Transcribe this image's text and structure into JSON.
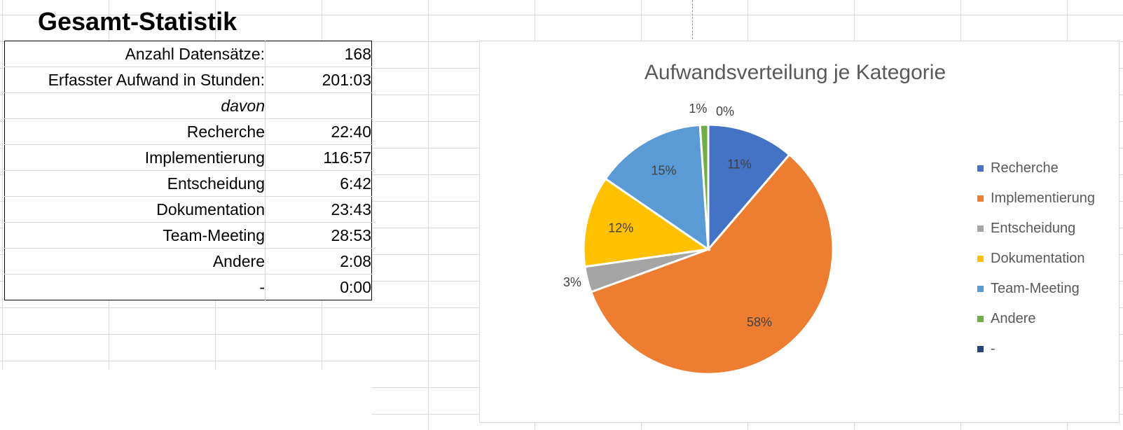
{
  "sheet": {
    "title": "Gesamt-Statistik",
    "rows": [
      {
        "label": "Anzahl Datensätze:",
        "value": "168",
        "italic": false
      },
      {
        "label": "Erfasster Aufwand in Stunden:",
        "value": "201:03",
        "italic": false
      },
      {
        "label": "davon",
        "value": "",
        "italic": true
      },
      {
        "label": "Recherche",
        "value": "22:40",
        "italic": false
      },
      {
        "label": "Implementierung",
        "value": "116:57",
        "italic": false
      },
      {
        "label": "Entscheidung",
        "value": "6:42",
        "italic": false
      },
      {
        "label": "Dokumentation",
        "value": "23:43",
        "italic": false
      },
      {
        "label": "Team-Meeting",
        "value": "28:53",
        "italic": false
      },
      {
        "label": "Andere",
        "value": "2:08",
        "italic": false
      },
      {
        "label": "-",
        "value": "0:00",
        "italic": false
      }
    ]
  },
  "chart_data": {
    "type": "pie",
    "title": "Aufwandsverteilung je Kategorie",
    "legend_position": "right",
    "categories": [
      "Recherche",
      "Implementierung",
      "Entscheidung",
      "Dokumentation",
      "Team-Meeting",
      "Andere",
      "-"
    ],
    "values": [
      22.667,
      116.95,
      6.7,
      23.717,
      28.883,
      2.133,
      0
    ],
    "labels": [
      "11%",
      "58%",
      "3%",
      "12%",
      "15%",
      "1%",
      "0%"
    ],
    "colors": [
      "#4472C4",
      "#ED7D31",
      "#A5A5A5",
      "#FFC000",
      "#5B9BD5",
      "#70AD47",
      "#264478"
    ]
  }
}
